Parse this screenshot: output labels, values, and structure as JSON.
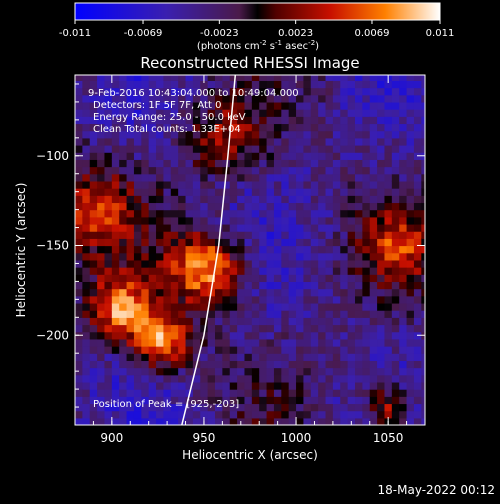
{
  "chart_data": {
    "type": "heatmap",
    "title": "Reconstructed RHESSI Image",
    "colorbar": {
      "ticks": [
        "-0.011",
        "-0.0069",
        "-0.0023",
        "0.0023",
        "0.0069",
        "0.011"
      ],
      "unit_base": "(photons cm",
      "unit_exp1": "-2",
      "unit_mid": " s",
      "unit_exp2": "-1",
      "unit_mid2": " asec",
      "unit_exp3": "-2",
      "unit_end": ")",
      "range": [
        -0.011,
        0.011
      ]
    },
    "xlabel": "Heliocentric X (arcsec)",
    "ylabel": "Heliocentric Y (arcsec)",
    "xlim": [
      880,
      1070
    ],
    "ylim": [
      -250,
      -55
    ],
    "xticks": [
      "900",
      "950",
      "1000",
      "1050"
    ],
    "yticks": [
      "-100",
      "-150",
      "-200"
    ],
    "annotations": {
      "time": "9-Feb-2016 10:43:04.000 to 10:49:04.000",
      "detectors": "Detectors: 1F 5F 7F, Att 0",
      "energy": "Energy Range: 25.0 - 50.0 keV",
      "clean": "Clean    Total counts: 1.33E+04",
      "peak": "Position of Peak = [925,-203]"
    },
    "sources": [
      {
        "x": 952,
        "y": -163,
        "sigma": 14,
        "amp": 1.0
      },
      {
        "x": 905,
        "y": -185,
        "sigma": 12,
        "amp": 0.9
      },
      {
        "x": 928,
        "y": -203,
        "sigma": 11,
        "amp": 0.95
      },
      {
        "x": 888,
        "y": -130,
        "sigma": 18,
        "amp": 0.6
      },
      {
        "x": 1055,
        "y": -150,
        "sigma": 14,
        "amp": 0.55
      },
      {
        "x": 1050,
        "y": -240,
        "sigma": 9,
        "amp": 0.7
      },
      {
        "x": 960,
        "y": -90,
        "sigma": 14,
        "amp": 0.5
      }
    ],
    "limb_curve": [
      [
        938,
        -250
      ],
      [
        950,
        -200
      ],
      [
        958,
        -150
      ],
      [
        963,
        -100
      ],
      [
        967,
        -55
      ]
    ],
    "footer": "18-May-2022 00:12"
  }
}
